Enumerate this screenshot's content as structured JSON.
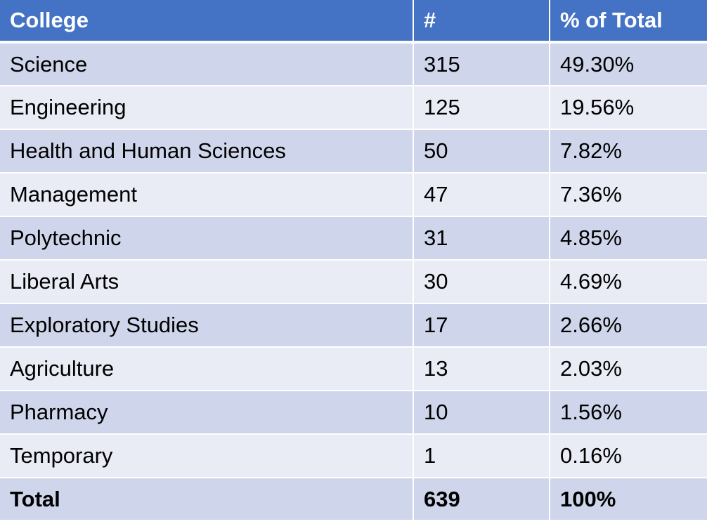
{
  "table": {
    "headers": [
      "College",
      "#",
      "% of Total"
    ],
    "rows": [
      {
        "college": "Science",
        "count": "315",
        "percent": "49.30%"
      },
      {
        "college": "Engineering",
        "count": "125",
        "percent": "19.56%"
      },
      {
        "college": "Health and Human Sciences",
        "count": "50",
        "percent": "7.82%"
      },
      {
        "college": "Management",
        "count": "47",
        "percent": "7.36%"
      },
      {
        "college": "Polytechnic",
        "count": "31",
        "percent": "4.85%"
      },
      {
        "college": "Liberal Arts",
        "count": "30",
        "percent": "4.69%"
      },
      {
        "college": "Exploratory Studies",
        "count": "17",
        "percent": "2.66%"
      },
      {
        "college": "Agriculture",
        "count": "13",
        "percent": "2.03%"
      },
      {
        "college": "Pharmacy",
        "count": "10",
        "percent": "1.56%"
      },
      {
        "college": "Temporary",
        "count": "1",
        "percent": "0.16%"
      }
    ],
    "total": {
      "college": "Total",
      "count": "639",
      "percent": "100%"
    }
  },
  "colors": {
    "header_bg": "#4472c4",
    "row_dark": "#cfd5ea",
    "row_light": "#e9ebf5"
  }
}
